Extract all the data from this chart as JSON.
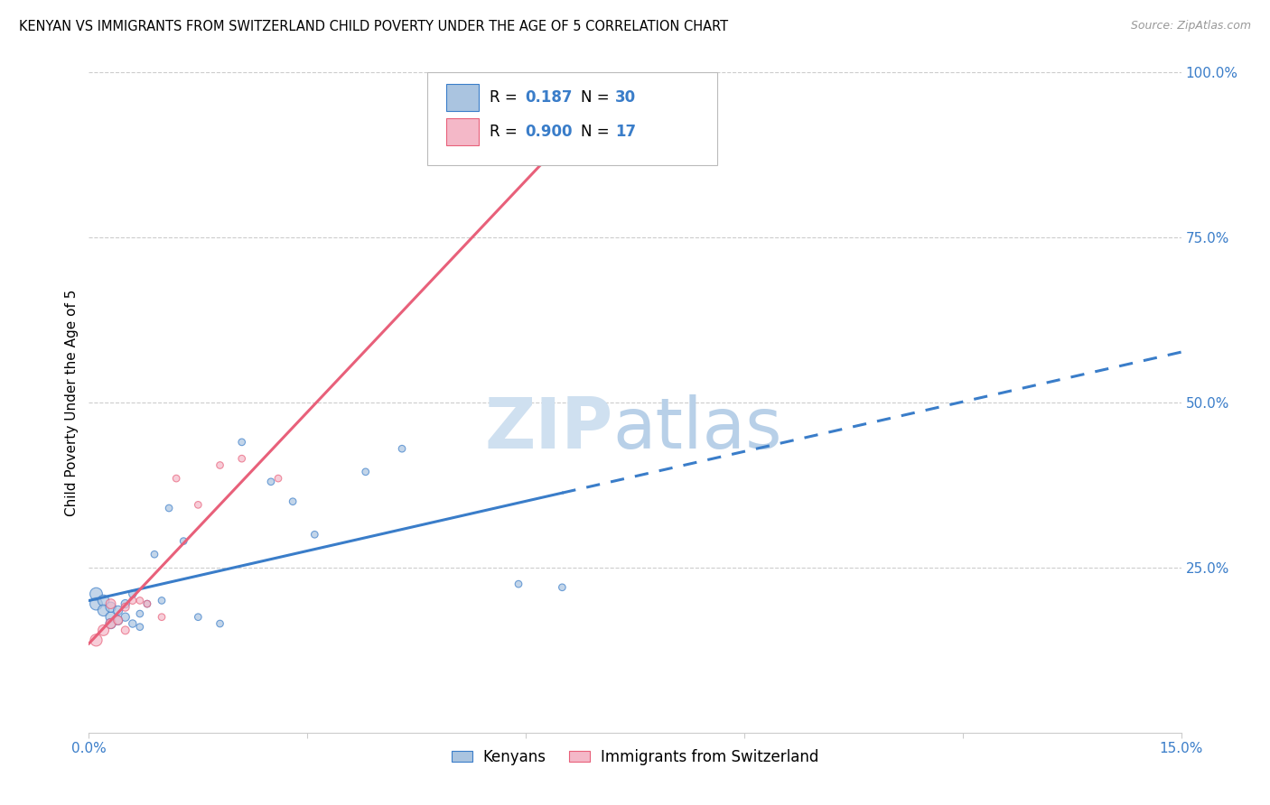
{
  "title": "KENYAN VS IMMIGRANTS FROM SWITZERLAND CHILD POVERTY UNDER THE AGE OF 5 CORRELATION CHART",
  "source": "Source: ZipAtlas.com",
  "ylabel": "Child Poverty Under the Age of 5",
  "xlim": [
    0,
    0.15
  ],
  "ylim": [
    0,
    1.0
  ],
  "x_ticks": [
    0.0,
    0.03,
    0.06,
    0.09,
    0.12,
    0.15
  ],
  "y_ticks_right": [
    0.0,
    0.25,
    0.5,
    0.75,
    1.0
  ],
  "legend_labels": [
    "Kenyans",
    "Immigrants from Switzerland"
  ],
  "R_kenyan": 0.187,
  "N_kenyan": 30,
  "R_swiss": 0.9,
  "N_swiss": 17,
  "color_kenyan": "#aac4e0",
  "color_swiss": "#f4b8c8",
  "line_color_kenyan": "#3a7dc9",
  "line_color_swiss": "#e8607a",
  "watermark_zip": "ZIP",
  "watermark_atlas": "atlas",
  "kenyan_x": [
    0.001,
    0.001,
    0.002,
    0.002,
    0.003,
    0.003,
    0.003,
    0.004,
    0.004,
    0.005,
    0.005,
    0.006,
    0.006,
    0.007,
    0.007,
    0.008,
    0.009,
    0.01,
    0.011,
    0.013,
    0.015,
    0.018,
    0.021,
    0.025,
    0.028,
    0.031,
    0.038,
    0.043,
    0.059,
    0.065
  ],
  "kenyan_y": [
    0.195,
    0.21,
    0.2,
    0.185,
    0.175,
    0.165,
    0.19,
    0.17,
    0.185,
    0.175,
    0.195,
    0.165,
    0.21,
    0.16,
    0.18,
    0.195,
    0.27,
    0.2,
    0.34,
    0.29,
    0.175,
    0.165,
    0.44,
    0.38,
    0.35,
    0.3,
    0.395,
    0.43,
    0.225,
    0.22
  ],
  "swiss_x": [
    0.001,
    0.002,
    0.003,
    0.003,
    0.004,
    0.005,
    0.005,
    0.006,
    0.007,
    0.008,
    0.01,
    0.012,
    0.015,
    0.018,
    0.021,
    0.026,
    0.075
  ],
  "swiss_y": [
    0.14,
    0.155,
    0.165,
    0.195,
    0.17,
    0.155,
    0.19,
    0.2,
    0.2,
    0.195,
    0.175,
    0.385,
    0.345,
    0.405,
    0.415,
    0.385,
    1.0
  ],
  "kenyan_base_size": 120,
  "swiss_base_size": 110,
  "grid_color": "#cccccc",
  "spine_color": "#cccccc"
}
